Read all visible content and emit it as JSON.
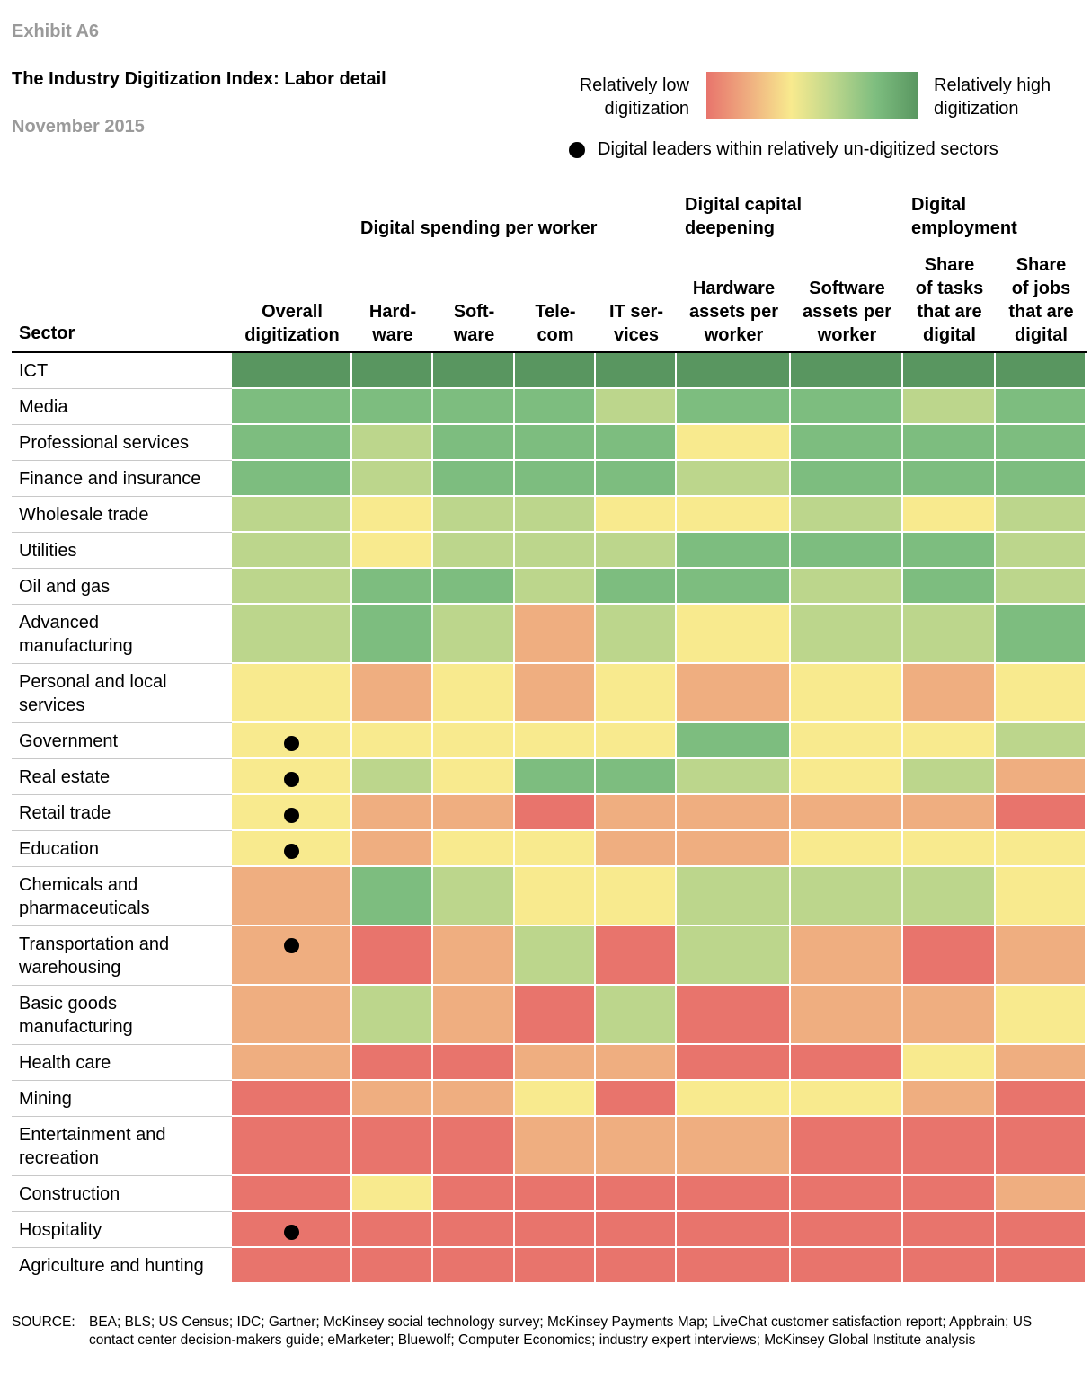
{
  "exhibit": "Exhibit A6",
  "title": "The Industry Digitization Index: Labor detail",
  "subtitle": "November 2015",
  "legend": {
    "low_line1": "Relatively low",
    "low_line2": "digitization",
    "high_line1": "Relatively high",
    "high_line2": "digitization",
    "dot_label": "Digital leaders within relatively un-digitized sectors",
    "gradient": [
      "#e8746c",
      "#efae80",
      "#f8ea8e",
      "#bcd68c",
      "#7dbd7f",
      "#599660"
    ]
  },
  "headers": {
    "sector": "Sector",
    "groups": {
      "spending": "Digital spending per worker",
      "capital_line1": "Digital capital",
      "capital_line2": "deepening",
      "employment_line1": "Digital",
      "employment_line2": "employment"
    },
    "columns": [
      [
        "Overall",
        "digitization"
      ],
      [
        "Hard-",
        "ware"
      ],
      [
        "Soft-",
        "ware"
      ],
      [
        "Tele-",
        "com"
      ],
      [
        "IT ser-",
        "vices"
      ],
      [
        "Hardware",
        "assets per",
        "worker"
      ],
      [
        "Software",
        "assets per",
        "worker"
      ],
      [
        "Share",
        "of tasks",
        "that are",
        "digital"
      ],
      [
        "Share",
        "of jobs",
        "that are",
        "digital"
      ]
    ]
  },
  "colors": {
    "5": "#599660",
    "4": "#7dbd7f",
    "3": "#bcd68c",
    "2": "#f8ea8e",
    "1": "#efae80",
    "0": "#e8746c"
  },
  "chart_data": {
    "type": "heatmap",
    "title": "The Industry Digitization Index: Labor detail",
    "scale": "0 = relatively low digitization, 5 = relatively high digitization",
    "columns": [
      "Overall digitization",
      "Hard-ware",
      "Soft-ware",
      "Tele-com",
      "IT ser-vices",
      "Hardware assets per worker",
      "Software assets per worker",
      "Share of tasks that are digital",
      "Share of jobs that are digital"
    ],
    "rows": [
      {
        "sector": [
          "ICT"
        ],
        "values": [
          5,
          5,
          5,
          5,
          5,
          5,
          5,
          5,
          5
        ],
        "leader": false
      },
      {
        "sector": [
          "Media"
        ],
        "values": [
          4,
          4,
          4,
          4,
          3,
          4,
          4,
          3,
          4
        ],
        "leader": false
      },
      {
        "sector": [
          "Professional services"
        ],
        "values": [
          4,
          3,
          4,
          4,
          4,
          2,
          4,
          4,
          4
        ],
        "leader": false
      },
      {
        "sector": [
          "Finance and insurance"
        ],
        "values": [
          4,
          3,
          4,
          4,
          4,
          3,
          4,
          4,
          4
        ],
        "leader": false
      },
      {
        "sector": [
          "Wholesale trade"
        ],
        "values": [
          3,
          2,
          3,
          3,
          2,
          2,
          3,
          2,
          3
        ],
        "leader": false
      },
      {
        "sector": [
          "Utilities"
        ],
        "values": [
          3,
          2,
          3,
          3,
          3,
          4,
          4,
          4,
          3
        ],
        "leader": false
      },
      {
        "sector": [
          "Oil and gas"
        ],
        "values": [
          3,
          4,
          4,
          3,
          4,
          4,
          3,
          4,
          3
        ],
        "leader": false
      },
      {
        "sector": [
          "Advanced",
          "manufacturing"
        ],
        "values": [
          3,
          4,
          3,
          1,
          3,
          2,
          3,
          3,
          4
        ],
        "leader": false
      },
      {
        "sector": [
          "Personal and local",
          "services"
        ],
        "values": [
          2,
          1,
          2,
          1,
          2,
          1,
          2,
          1,
          2
        ],
        "leader": false
      },
      {
        "sector": [
          "Government"
        ],
        "values": [
          2,
          2,
          2,
          2,
          2,
          4,
          2,
          2,
          3
        ],
        "leader": true
      },
      {
        "sector": [
          "Real estate"
        ],
        "values": [
          2,
          3,
          2,
          4,
          4,
          3,
          2,
          3,
          1
        ],
        "leader": true
      },
      {
        "sector": [
          "Retail trade"
        ],
        "values": [
          2,
          1,
          1,
          0,
          1,
          1,
          1,
          1,
          0
        ],
        "leader": true
      },
      {
        "sector": [
          "Education"
        ],
        "values": [
          2,
          1,
          2,
          2,
          1,
          1,
          2,
          2,
          2
        ],
        "leader": true
      },
      {
        "sector": [
          "Chemicals and",
          "pharmaceuticals"
        ],
        "values": [
          1,
          4,
          3,
          2,
          2,
          3,
          3,
          3,
          2
        ],
        "leader": false
      },
      {
        "sector": [
          "Transportation and",
          "warehousing"
        ],
        "values": [
          1,
          0,
          1,
          3,
          0,
          3,
          1,
          0,
          1
        ],
        "leader": true
      },
      {
        "sector": [
          "Basic goods",
          "manufacturing"
        ],
        "values": [
          1,
          3,
          1,
          0,
          3,
          0,
          1,
          1,
          2
        ],
        "leader": false
      },
      {
        "sector": [
          "Health care"
        ],
        "values": [
          1,
          0,
          0,
          1,
          1,
          0,
          0,
          2,
          1
        ],
        "leader": false
      },
      {
        "sector": [
          "Mining"
        ],
        "values": [
          0,
          1,
          1,
          2,
          0,
          2,
          2,
          1,
          0
        ],
        "leader": false
      },
      {
        "sector": [
          "Entertainment and",
          "recreation"
        ],
        "values": [
          0,
          0,
          0,
          1,
          1,
          1,
          0,
          0,
          0
        ],
        "leader": false
      },
      {
        "sector": [
          "Construction"
        ],
        "values": [
          0,
          2,
          0,
          0,
          0,
          0,
          0,
          0,
          1
        ],
        "leader": false
      },
      {
        "sector": [
          "Hospitality"
        ],
        "values": [
          0,
          0,
          0,
          0,
          0,
          0,
          0,
          0,
          0
        ],
        "leader": true
      },
      {
        "sector": [
          "Agriculture and hunting"
        ],
        "values": [
          0,
          0,
          0,
          0,
          0,
          0,
          0,
          0,
          0
        ],
        "leader": false
      }
    ]
  },
  "source": {
    "label": "SOURCE:",
    "text": "BEA; BLS; US Census; IDC; Gartner; McKinsey social technology survey; McKinsey Payments Map; LiveChat customer satisfaction report; Appbrain; US contact center decision-makers guide; eMarketer; Bluewolf; Computer Economics; industry expert interviews; McKinsey Global Institute analysis"
  }
}
